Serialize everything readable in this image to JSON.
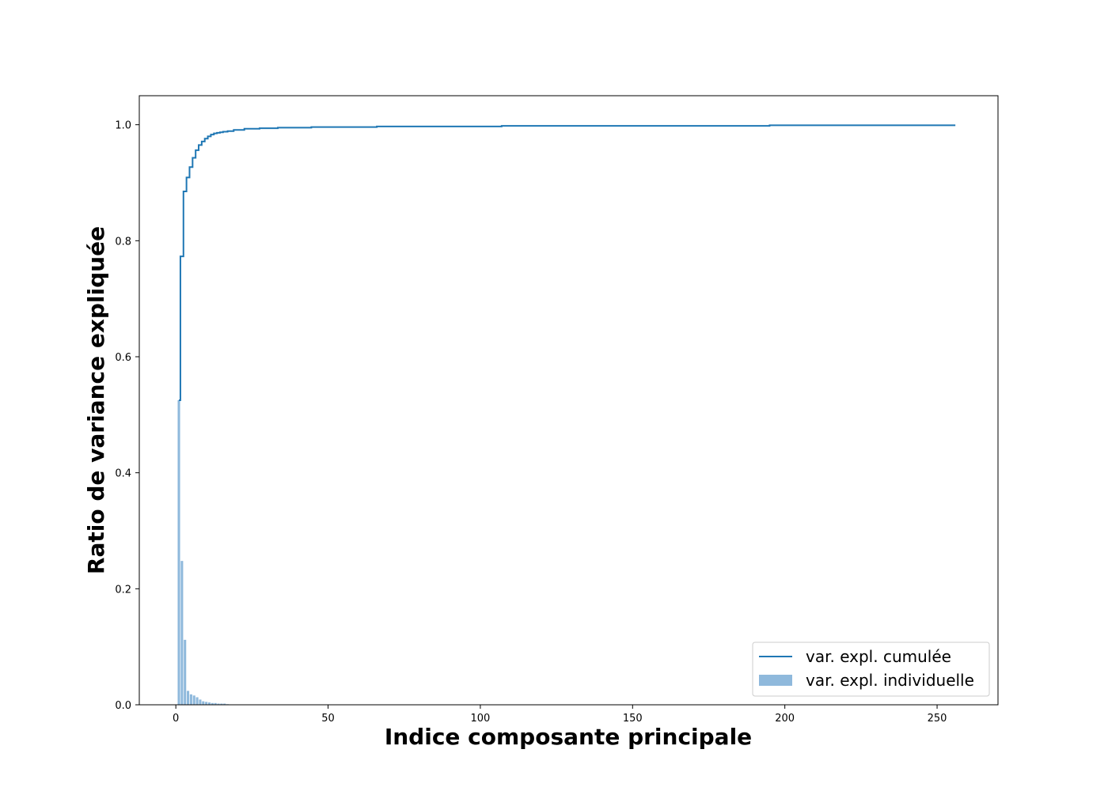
{
  "chart_data": {
    "type": "bar",
    "title": "",
    "xlabel": "Indice composante principale",
    "ylabel": "Ratio de variance expliquée",
    "xlim": [
      -12,
      270
    ],
    "ylim": [
      0,
      1.05
    ],
    "xticks": [
      0,
      50,
      100,
      150,
      200,
      250
    ],
    "yticks": [
      0.0,
      0.2,
      0.4,
      0.6,
      0.8,
      1.0
    ],
    "grid": false,
    "legend_position": "bottom-right",
    "colors": {
      "line": "#1f77b4",
      "bars": "#8fb9dc"
    },
    "series": [
      {
        "name": "var. expl. individuelle",
        "type": "bar",
        "x": [
          1,
          2,
          3,
          4,
          5,
          6,
          7,
          8,
          9,
          10,
          11,
          12,
          13,
          14,
          15,
          16,
          17
        ],
        "values": [
          0.525,
          0.248,
          0.112,
          0.024,
          0.018,
          0.016,
          0.013,
          0.009,
          0.006,
          0.005,
          0.004,
          0.003,
          0.003,
          0.002,
          0.002,
          0.002,
          0.001
        ]
      },
      {
        "name": "var. expl. cumulée",
        "type": "step",
        "x": [
          1,
          2,
          3,
          4,
          5,
          6,
          7,
          8,
          9,
          10,
          11,
          12,
          13,
          14,
          15,
          16,
          18,
          20,
          25,
          30,
          37,
          52,
          80,
          134,
          256
        ],
        "values": [
          0.525,
          0.773,
          0.885,
          0.909,
          0.927,
          0.943,
          0.956,
          0.965,
          0.971,
          0.976,
          0.98,
          0.983,
          0.985,
          0.986,
          0.987,
          0.988,
          0.989,
          0.991,
          0.993,
          0.994,
          0.995,
          0.996,
          0.997,
          0.998,
          0.999
        ]
      }
    ]
  }
}
